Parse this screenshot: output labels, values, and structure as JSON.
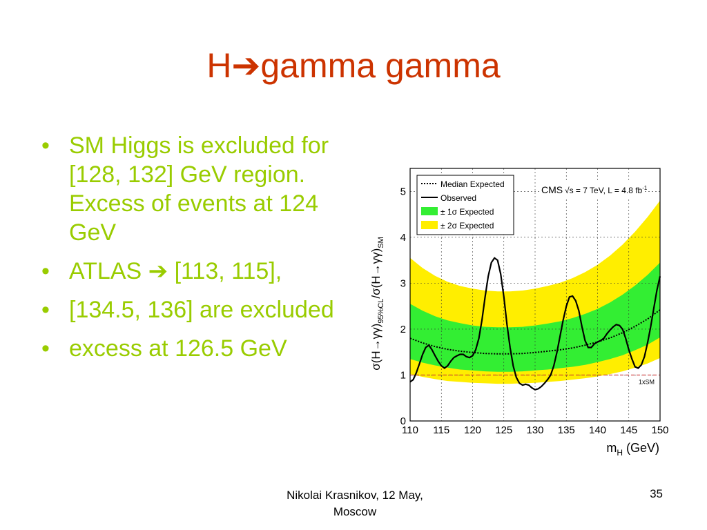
{
  "slide": {
    "title_prefix": "H",
    "title_arrow": "➔",
    "title_rest": "gamma gamma",
    "bullets": [
      {
        "text": "SM Higgs is excluded for [128, 132] GeV region.  Excess of events at 124 GeV"
      },
      {
        "text_prefix": "ATLAS ",
        "arrow": "➔",
        "text_rest": " [113, 115],"
      },
      {
        "text": "[134.5, 136] are excluded"
      },
      {
        "text": "excess at 126.5 GeV"
      }
    ],
    "footer_line1": "Nikolai Krasnikov, 12 May,",
    "footer_line2": "Moscow",
    "page_number": "35"
  },
  "chart_data": {
    "type": "line",
    "xlabel_main": "m",
    "xlabel_sub": "H",
    "xlabel_unit": " (GeV)",
    "ylabel_parts": {
      "a": "σ(H→γγ)",
      "b": "95%CL",
      "c": "/σ(H→γγ)",
      "d": "SM"
    },
    "xlim": [
      110,
      150
    ],
    "ylim": [
      0,
      5.5
    ],
    "x_ticks": [
      "110",
      "115",
      "120",
      "125",
      "130",
      "135",
      "140",
      "145",
      "150"
    ],
    "y_ticks": [
      "0",
      "1",
      "2",
      "3",
      "4",
      "5"
    ],
    "grid": true,
    "legend_position": "top-left",
    "legend": {
      "median": "Median Expected",
      "observed": "Observed",
      "one_sigma": "± 1σ Expected",
      "two_sigma": "± 2σ Expected"
    },
    "experiment_label": "CMS",
    "energy_label": "√s = 7 TeV, L = 4.8 fb",
    "energy_sup": "-1",
    "sm_line_label": "1xSM",
    "sm_value": 1,
    "colors": {
      "one_sigma": "#33ee33",
      "two_sigma": "#ffee00",
      "observed": "#000000",
      "sm_line": "#cc3333"
    },
    "x": [
      110,
      112,
      114,
      116,
      118,
      120,
      122,
      124,
      126,
      128,
      130,
      132,
      134,
      136,
      138,
      140,
      142,
      144,
      146,
      148,
      150
    ],
    "median_expected": [
      1.8,
      1.7,
      1.62,
      1.56,
      1.52,
      1.49,
      1.47,
      1.46,
      1.46,
      1.47,
      1.49,
      1.52,
      1.55,
      1.59,
      1.65,
      1.72,
      1.81,
      1.92,
      2.06,
      2.22,
      2.42
    ],
    "one_sigma_low": [
      1.35,
      1.27,
      1.21,
      1.16,
      1.12,
      1.1,
      1.08,
      1.07,
      1.07,
      1.08,
      1.1,
      1.12,
      1.15,
      1.18,
      1.22,
      1.28,
      1.35,
      1.43,
      1.54,
      1.66,
      1.82
    ],
    "one_sigma_high": [
      2.55,
      2.4,
      2.28,
      2.19,
      2.13,
      2.08,
      2.05,
      2.04,
      2.04,
      2.05,
      2.08,
      2.12,
      2.17,
      2.24,
      2.33,
      2.44,
      2.58,
      2.75,
      2.95,
      3.18,
      3.45
    ],
    "two_sigma_low": [
      1.02,
      0.96,
      0.91,
      0.87,
      0.85,
      0.83,
      0.82,
      0.81,
      0.81,
      0.82,
      0.83,
      0.85,
      0.87,
      0.9,
      0.93,
      0.97,
      1.02,
      1.08,
      1.16,
      1.25,
      1.37
    ],
    "two_sigma_high": [
      3.55,
      3.33,
      3.16,
      3.03,
      2.94,
      2.88,
      2.84,
      2.82,
      2.82,
      2.84,
      2.88,
      2.94,
      3.01,
      3.11,
      3.24,
      3.4,
      3.6,
      3.84,
      4.12,
      4.44,
      4.8
    ],
    "observed": {
      "x": [
        110,
        110.5,
        111,
        111.5,
        112,
        112.5,
        113,
        113.5,
        114,
        114.5,
        115,
        115.5,
        116,
        116.5,
        117,
        117.5,
        118,
        118.5,
        119,
        119.5,
        120,
        120.5,
        121,
        121.5,
        122,
        122.5,
        123,
        123.5,
        124,
        124.5,
        125,
        125.5,
        126,
        126.5,
        127,
        127.5,
        128,
        128.5,
        129,
        129.5,
        130,
        130.5,
        131,
        131.5,
        132,
        132.5,
        133,
        133.5,
        134,
        134.5,
        135,
        135.5,
        136,
        136.5,
        137,
        137.5,
        138,
        138.5,
        139,
        139.5,
        140,
        140.5,
        141,
        141.5,
        142,
        142.5,
        143,
        143.5,
        144,
        144.5,
        145,
        145.5,
        146,
        146.5,
        147,
        147.5,
        148,
        148.5,
        149,
        149.5,
        150
      ],
      "y": [
        0.85,
        0.9,
        1.05,
        1.25,
        1.45,
        1.6,
        1.65,
        1.55,
        1.42,
        1.3,
        1.2,
        1.15,
        1.2,
        1.3,
        1.38,
        1.42,
        1.45,
        1.45,
        1.4,
        1.38,
        1.42,
        1.55,
        1.8,
        2.2,
        2.7,
        3.15,
        3.45,
        3.55,
        3.5,
        3.2,
        2.7,
        2.1,
        1.6,
        1.2,
        0.95,
        0.82,
        0.78,
        0.8,
        0.78,
        0.72,
        0.68,
        0.7,
        0.75,
        0.82,
        0.9,
        1.0,
        1.2,
        1.5,
        1.85,
        2.2,
        2.5,
        2.7,
        2.72,
        2.62,
        2.4,
        2.05,
        1.75,
        1.6,
        1.6,
        1.68,
        1.72,
        1.75,
        1.8,
        1.9,
        1.98,
        2.05,
        2.1,
        2.08,
        2.0,
        1.8,
        1.55,
        1.35,
        1.18,
        1.15,
        1.22,
        1.4,
        1.7,
        2.05,
        2.45,
        2.85,
        3.15
      ]
    }
  }
}
